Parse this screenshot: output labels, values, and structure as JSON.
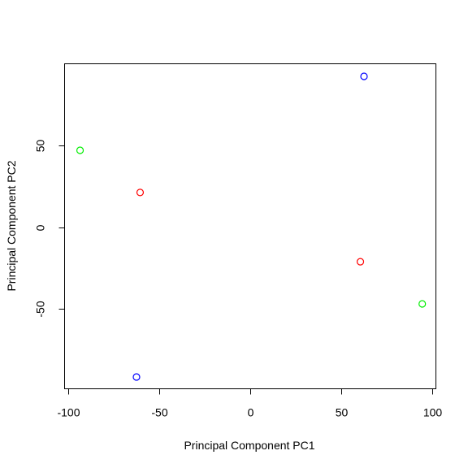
{
  "chart_data": {
    "type": "scatter",
    "title": "",
    "xlabel": "Principal Component PC1",
    "ylabel": "Principal Component PC2",
    "xlim": [
      -102,
      102
    ],
    "ylim": [
      -99,
      100
    ],
    "x_ticks": [
      -100,
      -50,
      0,
      50,
      100
    ],
    "x_tick_labels": [
      "-100",
      "-50",
      "0",
      "50",
      "100"
    ],
    "y_ticks": [
      -50,
      0,
      50
    ],
    "y_tick_labels": [
      "-50",
      "0",
      "50"
    ],
    "grid": false,
    "legend": "none",
    "points": [
      {
        "x": -93.5,
        "y": 47.0,
        "color": "#00ee00"
      },
      {
        "x": -60.5,
        "y": 21.2,
        "color": "#ff0000"
      },
      {
        "x": 62.5,
        "y": 92.3,
        "color": "#0000ff"
      },
      {
        "x": 60.5,
        "y": -21.2,
        "color": "#ff0000"
      },
      {
        "x": 94.5,
        "y": -47.0,
        "color": "#00ee00"
      },
      {
        "x": -62.5,
        "y": -91.8,
        "color": "#0000ff"
      }
    ]
  }
}
